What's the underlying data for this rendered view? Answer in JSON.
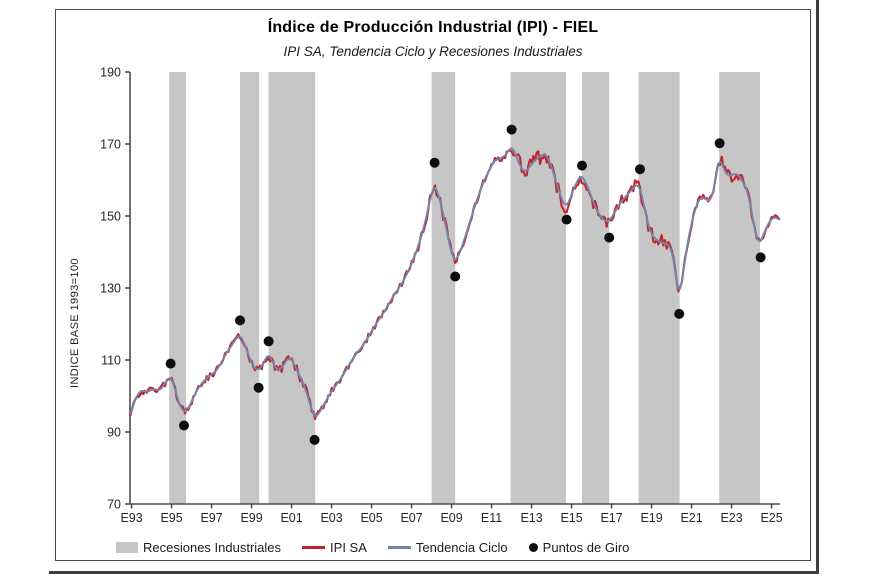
{
  "chart": {
    "title": "Índice de Producción Industrial (IPI) - FIEL",
    "subtitle": "IPI SA, Tendencia Ciclo y Recesiones Industriales",
    "ylabel": "INDICE BASE 1993=100"
  },
  "legend": {
    "items": [
      {
        "label": "Recesiones Industriales",
        "type": "band",
        "color": "#C6C6C6"
      },
      {
        "label": "IPI SA",
        "type": "line",
        "color": "#C2242C"
      },
      {
        "label": "Tendencia Ciclo",
        "type": "line",
        "color": "#7087AD"
      },
      {
        "label": "Puntos de Giro",
        "type": "dot",
        "color": "#0d0d0d"
      }
    ]
  },
  "chart_data": {
    "type": "line",
    "title": "Índice de Producción Industrial (IPI) - FIEL",
    "subtitle": "IPI SA, Tendencia Ciclo y Recesiones Industriales",
    "ylabel": "INDICE BASE 1993=100",
    "ylim": [
      70,
      190
    ],
    "y_ticks": [
      70,
      90,
      110,
      130,
      150,
      170,
      190
    ],
    "xlim": [
      1992.92,
      2025.42
    ],
    "x_ticks": [
      {
        "label": "E93",
        "year": 1993
      },
      {
        "label": "E95",
        "year": 1995
      },
      {
        "label": "E97",
        "year": 1997
      },
      {
        "label": "E99",
        "year": 1999
      },
      {
        "label": "E01",
        "year": 2001
      },
      {
        "label": "E03",
        "year": 2003
      },
      {
        "label": "E05",
        "year": 2005
      },
      {
        "label": "E07",
        "year": 2007
      },
      {
        "label": "E09",
        "year": 2009
      },
      {
        "label": "E11",
        "year": 2011
      },
      {
        "label": "E13",
        "year": 2013
      },
      {
        "label": "E15",
        "year": 2015
      },
      {
        "label": "E17",
        "year": 2017
      },
      {
        "label": "E19",
        "year": 2019
      },
      {
        "label": "E21",
        "year": 2021
      },
      {
        "label": "E23",
        "year": 2023
      },
      {
        "label": "E25",
        "year": 2025
      }
    ],
    "grid": false,
    "legend_position": "bottom",
    "colors": {
      "recession": "#C6C6C6",
      "ipi_sa": "#C2242C",
      "tendencia": "#7087AD",
      "dot": "#0d0d0d",
      "axis": "#4d4d4d"
    },
    "recessions": [
      [
        1994.88,
        1995.72
      ],
      [
        1998.42,
        1999.38
      ],
      [
        1999.85,
        2002.18
      ],
      [
        2008.0,
        2009.18
      ],
      [
        2011.95,
        2014.72
      ],
      [
        2015.52,
        2016.88
      ],
      [
        2018.35,
        2020.4
      ],
      [
        2022.38,
        2024.42
      ]
    ],
    "turning_points": [
      {
        "year": 1994.95,
        "value": 109.0,
        "kind": "peak"
      },
      {
        "year": 1995.62,
        "value": 91.8,
        "kind": "trough"
      },
      {
        "year": 1998.42,
        "value": 121.0,
        "kind": "peak"
      },
      {
        "year": 1999.35,
        "value": 102.3,
        "kind": "trough"
      },
      {
        "year": 1999.85,
        "value": 115.2,
        "kind": "peak"
      },
      {
        "year": 2002.15,
        "value": 87.8,
        "kind": "trough"
      },
      {
        "year": 2008.15,
        "value": 164.8,
        "kind": "peak"
      },
      {
        "year": 2009.18,
        "value": 133.2,
        "kind": "trough"
      },
      {
        "year": 2012.0,
        "value": 174.0,
        "kind": "peak"
      },
      {
        "year": 2014.75,
        "value": 149.0,
        "kind": "trough"
      },
      {
        "year": 2015.52,
        "value": 164.0,
        "kind": "peak"
      },
      {
        "year": 2016.88,
        "value": 144.0,
        "kind": "trough"
      },
      {
        "year": 2018.42,
        "value": 163.0,
        "kind": "peak"
      },
      {
        "year": 2020.38,
        "value": 122.8,
        "kind": "trough"
      },
      {
        "year": 2022.4,
        "value": 170.2,
        "kind": "peak"
      },
      {
        "year": 2024.45,
        "value": 138.5,
        "kind": "trough"
      }
    ],
    "series": [
      {
        "name": "IPI SA",
        "color": "#C2242C",
        "relation": "tendencia_ciclo plus monthly irregular component",
        "noise_base": 0.9,
        "noise_zones": [
          [
            1999.3,
            2002.2,
            1.3
          ],
          [
            2007.3,
            2009.3,
            1.5
          ],
          [
            2011.9,
            2014.9,
            2.3
          ],
          [
            2015.3,
            2018.4,
            1.8
          ],
          [
            2018.5,
            2020.15,
            2.2
          ],
          [
            2022.4,
            2024.15,
            2.0
          ]
        ]
      },
      {
        "name": "Tendencia Ciclo",
        "color": "#7087AD",
        "points": [
          [
            1992.92,
            94.0
          ],
          [
            1993.08,
            97.5
          ],
          [
            1993.25,
            100.0
          ],
          [
            1993.5,
            101.8
          ],
          [
            1993.7,
            101.0
          ],
          [
            1993.9,
            101.3
          ],
          [
            1994.1,
            102.2
          ],
          [
            1994.3,
            101.4
          ],
          [
            1994.5,
            102.0
          ],
          [
            1994.7,
            103.8
          ],
          [
            1994.95,
            105.8
          ],
          [
            1995.15,
            102.5
          ],
          [
            1995.35,
            98.0
          ],
          [
            1995.55,
            95.8
          ],
          [
            1995.75,
            95.5
          ],
          [
            1996.0,
            98.5
          ],
          [
            1996.25,
            101.5
          ],
          [
            1996.5,
            103.5
          ],
          [
            1996.75,
            105.0
          ],
          [
            1997.0,
            106.0
          ],
          [
            1997.25,
            107.0
          ],
          [
            1997.5,
            109.5
          ],
          [
            1997.75,
            112.0
          ],
          [
            1998.0,
            114.0
          ],
          [
            1998.2,
            115.8
          ],
          [
            1998.42,
            117.2
          ],
          [
            1998.65,
            114.5
          ],
          [
            1998.9,
            110.5
          ],
          [
            1999.1,
            108.0
          ],
          [
            1999.3,
            107.0
          ],
          [
            1999.5,
            108.0
          ],
          [
            1999.7,
            110.5
          ],
          [
            1999.85,
            112.0
          ],
          [
            2000.05,
            109.5
          ],
          [
            2000.3,
            106.8
          ],
          [
            2000.55,
            108.0
          ],
          [
            2000.8,
            110.5
          ],
          [
            2000.95,
            111.0
          ],
          [
            2001.2,
            108.0
          ],
          [
            2001.45,
            105.0
          ],
          [
            2001.7,
            102.0
          ],
          [
            2001.9,
            98.0
          ],
          [
            2002.15,
            93.5
          ],
          [
            2002.4,
            95.5
          ],
          [
            2002.7,
            98.5
          ],
          [
            2003.0,
            101.5
          ],
          [
            2003.3,
            103.5
          ],
          [
            2003.6,
            106.0
          ],
          [
            2003.9,
            109.0
          ],
          [
            2004.2,
            111.5
          ],
          [
            2004.5,
            113.5
          ],
          [
            2004.8,
            116.0
          ],
          [
            2005.1,
            119.0
          ],
          [
            2005.4,
            121.5
          ],
          [
            2005.7,
            124.0
          ],
          [
            2006.0,
            127.0
          ],
          [
            2006.3,
            129.5
          ],
          [
            2006.6,
            132.0
          ],
          [
            2006.9,
            135.5
          ],
          [
            2007.2,
            139.5
          ],
          [
            2007.5,
            144.5
          ],
          [
            2007.75,
            150.0
          ],
          [
            2008.0,
            156.5
          ],
          [
            2008.12,
            159.0
          ],
          [
            2008.3,
            157.0
          ],
          [
            2008.5,
            152.5
          ],
          [
            2008.7,
            147.5
          ],
          [
            2008.95,
            140.5
          ],
          [
            2009.15,
            137.0
          ],
          [
            2009.4,
            139.5
          ],
          [
            2009.7,
            144.5
          ],
          [
            2010.0,
            150.0
          ],
          [
            2010.3,
            155.0
          ],
          [
            2010.6,
            159.5
          ],
          [
            2010.9,
            163.0
          ],
          [
            2011.15,
            165.5
          ],
          [
            2011.4,
            166.0
          ],
          [
            2011.65,
            166.5
          ],
          [
            2011.85,
            168.0
          ],
          [
            2012.0,
            169.8
          ],
          [
            2012.2,
            167.0
          ],
          [
            2012.45,
            163.5
          ],
          [
            2012.65,
            162.0
          ],
          [
            2012.9,
            163.5
          ],
          [
            2013.15,
            165.5
          ],
          [
            2013.4,
            166.5
          ],
          [
            2013.65,
            167.5
          ],
          [
            2013.85,
            166.0
          ],
          [
            2014.1,
            162.0
          ],
          [
            2014.35,
            157.0
          ],
          [
            2014.55,
            154.0
          ],
          [
            2014.75,
            152.3
          ],
          [
            2015.0,
            156.0
          ],
          [
            2015.25,
            159.5
          ],
          [
            2015.5,
            161.5
          ],
          [
            2015.7,
            159.5
          ],
          [
            2015.95,
            156.0
          ],
          [
            2016.2,
            152.0
          ],
          [
            2016.5,
            149.5
          ],
          [
            2016.8,
            148.0
          ],
          [
            2017.05,
            150.0
          ],
          [
            2017.3,
            152.5
          ],
          [
            2017.55,
            154.5
          ],
          [
            2017.8,
            156.0
          ],
          [
            2018.05,
            157.5
          ],
          [
            2018.3,
            159.3
          ],
          [
            2018.5,
            156.5
          ],
          [
            2018.7,
            150.5
          ],
          [
            2018.9,
            146.0
          ],
          [
            2019.1,
            144.0
          ],
          [
            2019.35,
            143.0
          ],
          [
            2019.6,
            142.5
          ],
          [
            2019.85,
            142.0
          ],
          [
            2020.05,
            140.5
          ],
          [
            2020.2,
            133.5
          ],
          [
            2020.38,
            126.3
          ],
          [
            2020.55,
            133.0
          ],
          [
            2020.75,
            141.0
          ],
          [
            2020.95,
            147.0
          ],
          [
            2021.15,
            151.5
          ],
          [
            2021.35,
            154.5
          ],
          [
            2021.55,
            155.5
          ],
          [
            2021.75,
            154.5
          ],
          [
            2021.95,
            153.8
          ],
          [
            2022.15,
            158.0
          ],
          [
            2022.38,
            167.3
          ],
          [
            2022.6,
            163.0
          ],
          [
            2022.8,
            161.0
          ],
          [
            2023.0,
            161.3
          ],
          [
            2023.2,
            162.0
          ],
          [
            2023.4,
            161.0
          ],
          [
            2023.6,
            159.0
          ],
          [
            2023.8,
            157.0
          ],
          [
            2024.0,
            151.5
          ],
          [
            2024.2,
            144.5
          ],
          [
            2024.38,
            141.8
          ],
          [
            2024.6,
            145.0
          ],
          [
            2024.8,
            147.5
          ],
          [
            2025.0,
            149.3
          ],
          [
            2025.2,
            149.8
          ],
          [
            2025.42,
            148.8
          ]
        ]
      }
    ]
  }
}
